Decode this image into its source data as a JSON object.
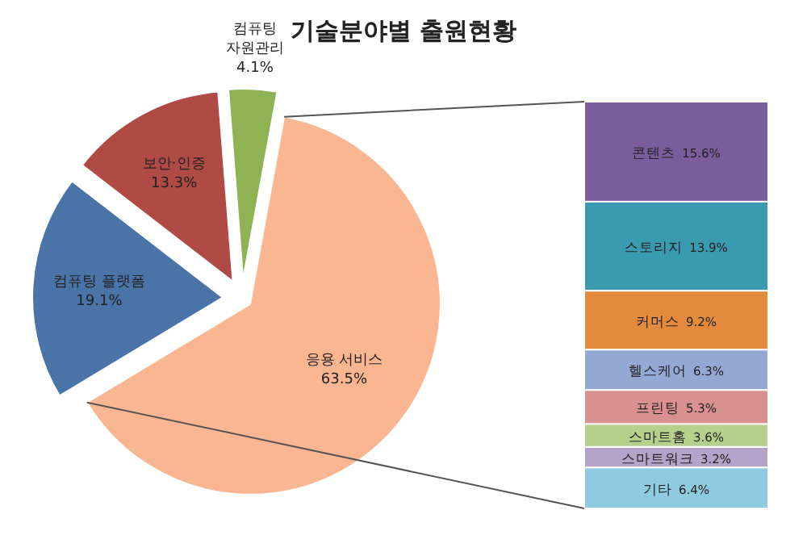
{
  "chart_data": [
    {
      "type": "pie",
      "title": "기술분야별 출원현황",
      "categories": [
        "응용 서비스",
        "컴퓨팅 플랫폼",
        "보안·인증",
        "컴퓨팅 자원관리"
      ],
      "values": [
        63.5,
        19.1,
        13.3,
        4.1
      ],
      "value_labels": [
        "63.5%",
        "19.1%",
        "13.3%",
        "4.1%"
      ],
      "colors": [
        "#f9b690",
        "#4a74a8",
        "#b04a45",
        "#8fb253"
      ]
    },
    {
      "type": "bar",
      "stacked": true,
      "categories": [
        null
      ],
      "ylim": [
        0,
        63.5
      ],
      "tick_labels": false,
      "series": [
        {
          "name": "기타",
          "color": "#8ecae0",
          "values": [
            6.4
          ],
          "value_labels": [
            "6.4%"
          ]
        },
        {
          "name": "스마트워크",
          "color": "#b3a3c9",
          "values": [
            3.2
          ],
          "value_labels": [
            "3.2%"
          ]
        },
        {
          "name": "스마트홈",
          "color": "#b5d08c",
          "values": [
            3.6
          ],
          "value_labels": [
            "3.6%"
          ]
        },
        {
          "name": "프린팅",
          "color": "#d9918f",
          "values": [
            5.3
          ],
          "value_labels": [
            "5.3%"
          ]
        },
        {
          "name": "헬스케어",
          "color": "#93a9d4",
          "values": [
            6.3
          ],
          "value_labels": [
            "6.3%"
          ]
        },
        {
          "name": "커머스",
          "color": "#e48a3c",
          "values": [
            9.2
          ],
          "value_labels": [
            "9.2%"
          ]
        },
        {
          "name": "스토리지",
          "color": "#3a9ab0",
          "values": [
            13.9
          ],
          "value_labels": [
            "13.9%"
          ]
        },
        {
          "name": "콘텐츠",
          "color": "#7b5c9c",
          "values": [
            15.6
          ],
          "value_labels": [
            "15.6%"
          ]
        }
      ]
    }
  ]
}
